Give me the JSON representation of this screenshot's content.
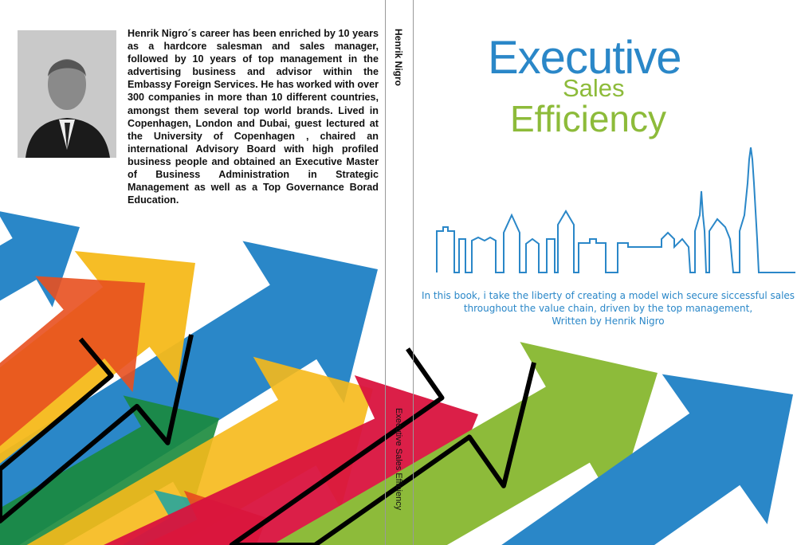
{
  "back_cover": {
    "bio": "Henrik Nigro´s career has been enriched by 10 years as a hardcore salesman and sales manager, followed by 10 years of top management in the advertising business and advisor within the Embassy  Foreign Services. He has worked with over 300 companies in more than 10 different countries, amongst them several top world brands. Lived in Copenhagen, London and Dubai, guest lectured at the University of Copenhagen , chaired an international Advisory Board with high profiled business people and obtained an Executive Master of Business Administration in Strategic Management as well as a Top Governance Borad Education."
  },
  "spine": {
    "author": "Henrik Nigro",
    "title": "Executive Sales Efficiency"
  },
  "front_cover": {
    "title_line1": "Executive",
    "title_line2": "Sales",
    "title_line3": "Efficiency",
    "blurb_line1": "In this book, i take the liberty of creating a model wich secure siccessful sales",
    "blurb_line2": "throughout the value chain, driven by the top management,",
    "blurb_line3": "Written by Henrik Nigro"
  },
  "colors": {
    "blue": "#2a87c8",
    "green": "#8dbb3a",
    "yellow": "#f6b91a",
    "orange": "#e8501f",
    "red": "#d9133e",
    "dark_green": "#1a8a3c"
  }
}
